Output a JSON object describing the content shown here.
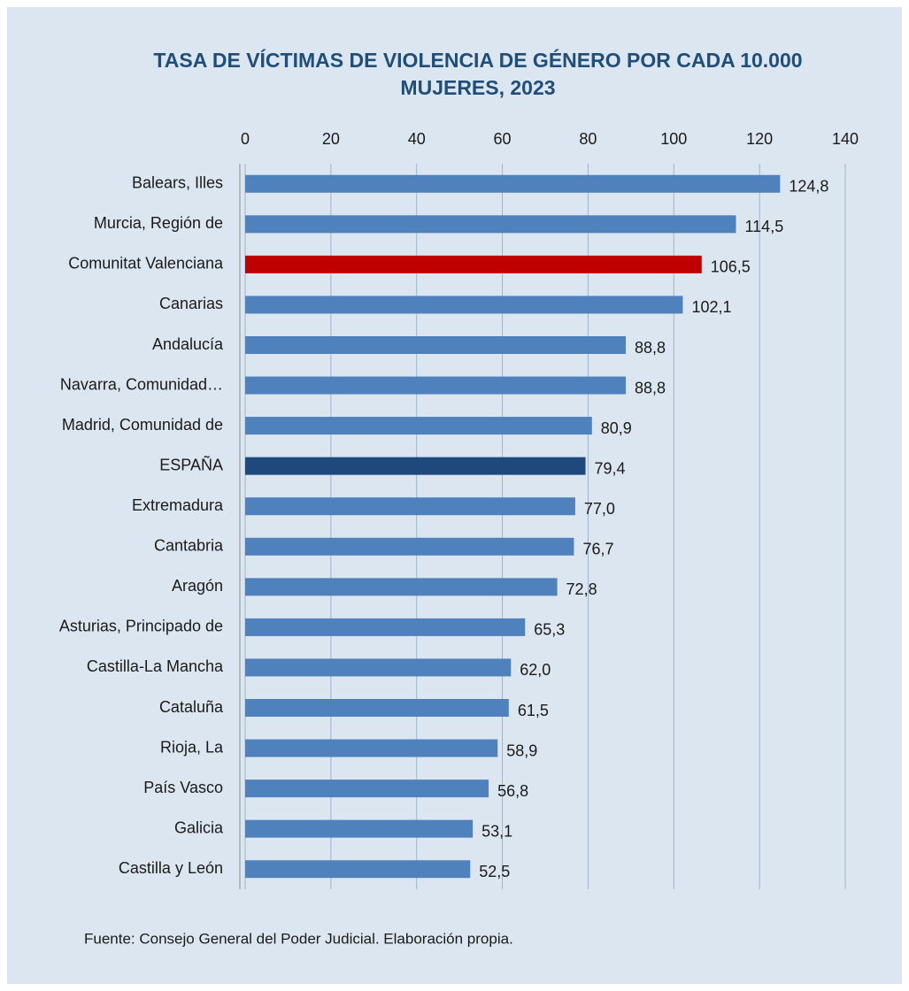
{
  "chart_data": {
    "type": "barh",
    "title": [
      "TASA DE VÍCTIMAS DE VIOLENCIA DE GÉNERO POR CADA 10.000",
      "MUJERES, 2023"
    ],
    "categories": [
      "Balears, Illes",
      "Murcia, Región de",
      "Comunitat Valenciana",
      "Canarias",
      "Andalucía",
      "Navarra, Comunidad…",
      "Madrid, Comunidad de",
      "ESPAÑA",
      "Extremadura",
      "Cantabria",
      "Aragón",
      "Asturias, Principado de",
      "Castilla-La Mancha",
      "Cataluña",
      "Rioja, La",
      "País Vasco",
      "Galicia",
      "Castilla y León"
    ],
    "values": [
      124.8,
      114.5,
      106.5,
      102.1,
      88.8,
      88.8,
      80.9,
      79.4,
      77.0,
      76.7,
      72.8,
      65.3,
      62.0,
      61.5,
      58.9,
      56.8,
      53.1,
      52.5
    ],
    "value_labels": [
      "124,8",
      "114,5",
      "106,5",
      "102,1",
      "88,8",
      "88,8",
      "80,9",
      "79,4",
      "77,0",
      "76,7",
      "72,8",
      "65,3",
      "62,0",
      "61,5",
      "58,9",
      "56,8",
      "53,1",
      "52,5"
    ],
    "colors": [
      "#4f81bd",
      "#4f81bd",
      "#c00000",
      "#4f81bd",
      "#4f81bd",
      "#4f81bd",
      "#4f81bd",
      "#1f497d",
      "#4f81bd",
      "#4f81bd",
      "#4f81bd",
      "#4f81bd",
      "#4f81bd",
      "#4f81bd",
      "#4f81bd",
      "#4f81bd",
      "#4f81bd",
      "#4f81bd"
    ],
    "xlim": [
      0,
      140
    ],
    "xticks": [
      0,
      20,
      40,
      60,
      80,
      100,
      120,
      140
    ],
    "grid": true,
    "source": "Fuente:  Consejo General del Poder Judicial. Elaboración propia."
  }
}
